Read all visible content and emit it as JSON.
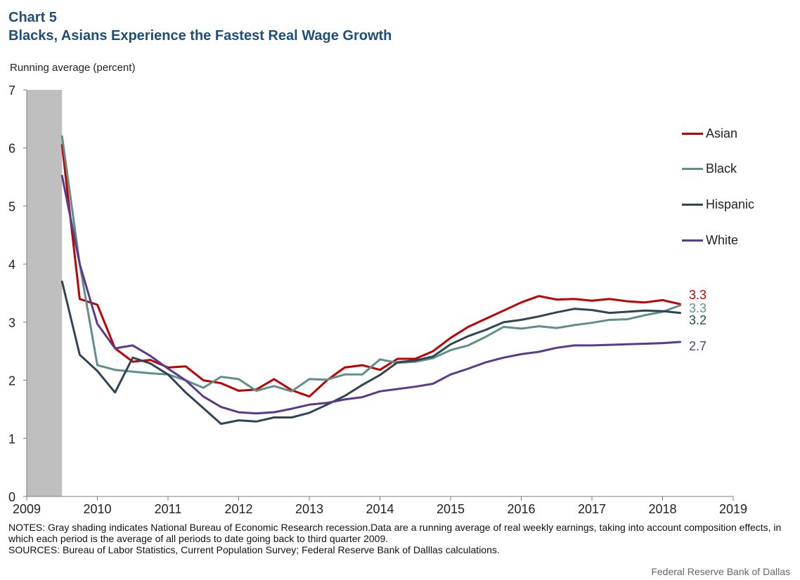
{
  "header": {
    "chart_label": "Chart 5",
    "title": "Blacks, Asians Experience the Fastest Real Wage Growth"
  },
  "chart_data": {
    "type": "line",
    "title": "Blacks, Asians Experience the Fastest Real Wage Growth",
    "xlabel": "",
    "ylabel": "Running average (percent)",
    "xlim": [
      2009,
      2019
    ],
    "ylim": [
      0,
      7
    ],
    "x_ticks": [
      "2009",
      "2010",
      "2011",
      "2012",
      "2013",
      "2014",
      "2015",
      "2016",
      "2017",
      "2018",
      "2019"
    ],
    "y_ticks": [
      "0",
      "1",
      "2",
      "3",
      "4",
      "5",
      "6",
      "7"
    ],
    "grid": false,
    "legend": "right",
    "recession_shading": {
      "from": 2009.0,
      "to": 2009.5,
      "color": "#bfbfbf"
    },
    "x": [
      2009.5,
      2009.75,
      2010.0,
      2010.25,
      2010.5,
      2010.75,
      2011.0,
      2011.25,
      2011.5,
      2011.75,
      2012.0,
      2012.25,
      2012.5,
      2012.75,
      2013.0,
      2013.25,
      2013.5,
      2013.75,
      2014.0,
      2014.25,
      2014.5,
      2014.75,
      2015.0,
      2015.25,
      2015.5,
      2015.75,
      2016.0,
      2016.25,
      2016.5,
      2016.75,
      2017.0,
      2017.25,
      2017.5,
      2017.75,
      2018.0,
      2018.25
    ],
    "series": [
      {
        "name": "Asian",
        "color": "#c00000",
        "end_label": "3.3",
        "values": [
          6.05,
          3.4,
          3.3,
          2.55,
          2.32,
          2.35,
          2.22,
          2.24,
          2.0,
          1.95,
          1.82,
          1.84,
          2.02,
          1.83,
          1.72,
          2.0,
          2.22,
          2.26,
          2.18,
          2.37,
          2.37,
          2.5,
          2.73,
          2.92,
          3.06,
          3.2,
          3.34,
          3.45,
          3.39,
          3.4,
          3.37,
          3.4,
          3.36,
          3.34,
          3.38,
          3.31
        ]
      },
      {
        "name": "Black",
        "color": "#5f8f8b",
        "end_label": "3.3",
        "values": [
          6.2,
          4.0,
          2.26,
          2.18,
          2.15,
          2.12,
          2.1,
          2.0,
          1.87,
          2.06,
          2.02,
          1.82,
          1.9,
          1.81,
          2.02,
          2.01,
          2.1,
          2.1,
          2.36,
          2.3,
          2.32,
          2.38,
          2.52,
          2.6,
          2.75,
          2.92,
          2.89,
          2.93,
          2.9,
          2.95,
          2.99,
          3.04,
          3.05,
          3.12,
          3.18,
          3.29
        ]
      },
      {
        "name": "Hispanic",
        "color": "#2f4454",
        "end_label": "3.2",
        "values": [
          3.7,
          2.44,
          2.16,
          1.79,
          2.39,
          2.29,
          2.1,
          1.79,
          1.52,
          1.25,
          1.31,
          1.29,
          1.36,
          1.36,
          1.44,
          1.58,
          1.73,
          1.92,
          2.09,
          2.31,
          2.34,
          2.41,
          2.62,
          2.76,
          2.87,
          3.0,
          3.04,
          3.1,
          3.17,
          3.23,
          3.21,
          3.16,
          3.18,
          3.2,
          3.19,
          3.16
        ]
      },
      {
        "name": "White",
        "color": "#5a3a8a",
        "end_label": "2.7",
        "values": [
          5.52,
          4.0,
          2.97,
          2.55,
          2.6,
          2.42,
          2.2,
          2.0,
          1.72,
          1.54,
          1.45,
          1.43,
          1.45,
          1.51,
          1.58,
          1.61,
          1.67,
          1.71,
          1.81,
          1.85,
          1.89,
          1.94,
          2.1,
          2.2,
          2.31,
          2.39,
          2.45,
          2.49,
          2.56,
          2.6,
          2.6,
          2.61,
          2.62,
          2.63,
          2.64,
          2.66
        ]
      }
    ]
  },
  "notes": {
    "notes_text": "NOTES:  Gray shading indicates National Bureau of Economic Research recession.Data are a running average of real weekly earnings, taking into account composition effects, in which each period is the average of all periods to date going back to third quarter 2009.",
    "sources_text": "SOURCES:  Bureau of Labor Statistics, Current Population Survey; Federal Reserve Bank of Dalllas calculations."
  },
  "credit": "Federal Reserve  Bank of Dallas"
}
